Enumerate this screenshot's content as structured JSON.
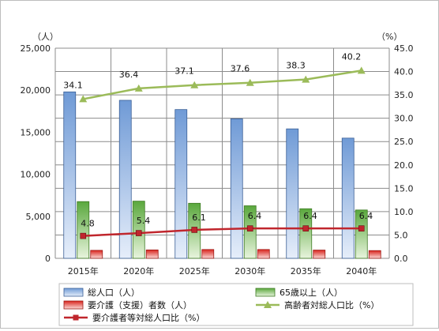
{
  "chart_data": {
    "type": "bar",
    "categories": [
      "2015年",
      "2020年",
      "2025年",
      "2030年",
      "2035年",
      "2040年"
    ],
    "y_left": {
      "unit": "（人）",
      "ylim": [
        0,
        25000
      ],
      "ticks": [
        "0",
        "5,000",
        "10,000",
        "15,000",
        "20,000",
        "25,000"
      ]
    },
    "y_right": {
      "unit": "（%）",
      "ylim": [
        0,
        45
      ],
      "ticks": [
        "0.0",
        "5.0",
        "10.0",
        "15.0",
        "20.0",
        "25.0",
        "30.0",
        "35.0",
        "40.0",
        "45.0"
      ]
    },
    "bar_series": [
      {
        "name": "総人口（人）",
        "color": "#8db3e2",
        "values": [
          19800,
          18800,
          17700,
          16600,
          15400,
          14300
        ]
      },
      {
        "name": "65歳以上（人）",
        "color": "#77c05a",
        "values": [
          6750,
          6800,
          6550,
          6250,
          5900,
          5750
        ]
      },
      {
        "name": "要介護（支援）者数（人）",
        "color": "#e53935",
        "values": [
          950,
          1000,
          1050,
          1050,
          980,
          920
        ]
      }
    ],
    "line_series": [
      {
        "name": "高齢者対総人口比（%）",
        "color": "#9bbb59",
        "marker": "triangle",
        "values": [
          34.1,
          36.4,
          37.1,
          37.6,
          38.3,
          40.2
        ],
        "labels": [
          "34.1",
          "36.4",
          "37.1",
          "37.6",
          "38.3",
          "40.2"
        ]
      },
      {
        "name": "要介護者等対総人口比（%）",
        "color": "#c0262d",
        "marker": "square",
        "values": [
          4.8,
          5.4,
          6.1,
          6.4,
          6.4,
          6.4
        ],
        "labels": [
          "4.8",
          "5.4",
          "6.1",
          "6.4",
          "6.4",
          "6.4"
        ]
      }
    ],
    "grid": true,
    "legend_position": "bottom"
  }
}
